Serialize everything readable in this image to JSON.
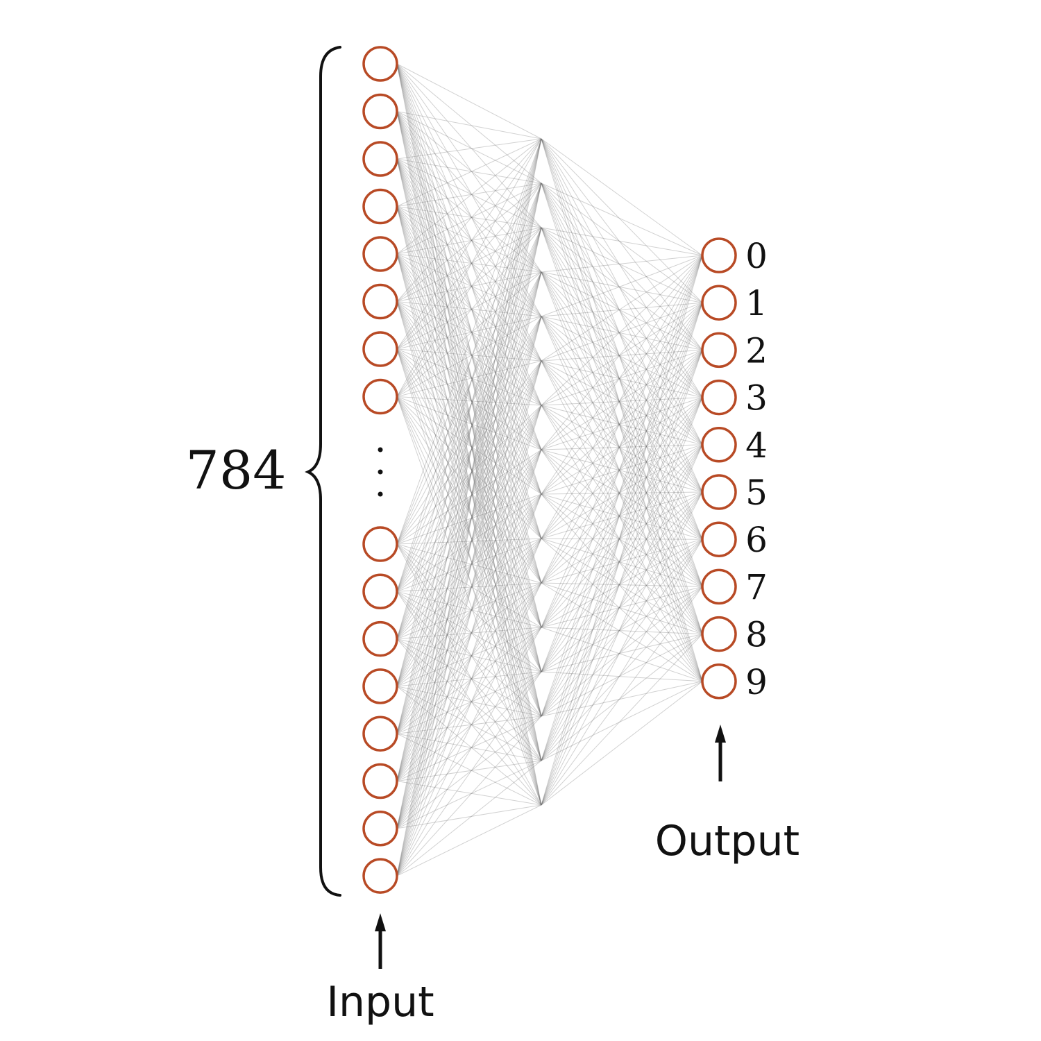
{
  "input_count_label": "784",
  "input_label": "Input",
  "output_label": "Output",
  "output_digits": [
    "0",
    "1",
    "2",
    "3",
    "4",
    "5",
    "6",
    "7",
    "8",
    "9"
  ],
  "layers": {
    "input_visible_top": 8,
    "input_visible_bottom": 8,
    "hidden_a": 16,
    "hidden_b": 16,
    "output": 10
  },
  "colors": {
    "neuron_stroke": "#b84a25",
    "edge": "#6f6f6f",
    "text": "#111111"
  },
  "icons": {
    "ellipsis": "vertical-ellipsis-icon",
    "brace": "left-curly-brace-icon",
    "arrow": "up-arrow-icon"
  }
}
